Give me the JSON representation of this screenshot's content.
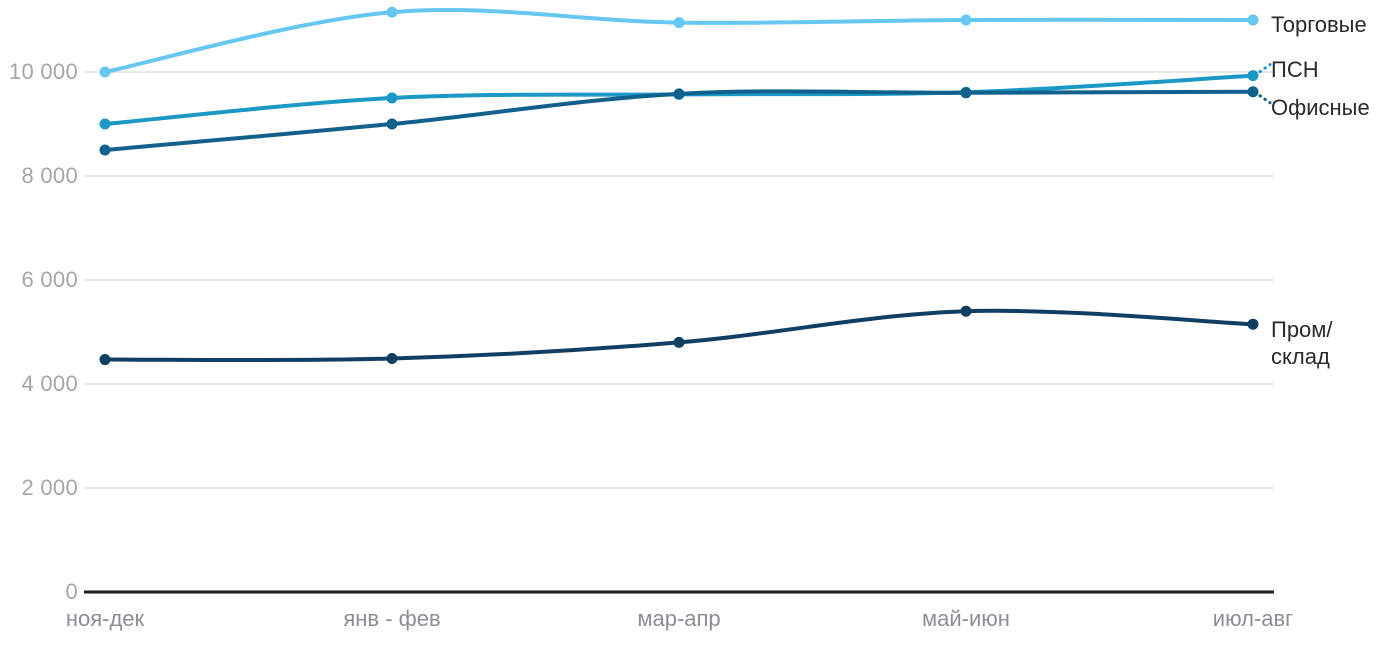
{
  "chart_data": {
    "type": "line",
    "title": "",
    "xlabel": "",
    "ylabel": "",
    "grid": true,
    "legend_position": "right-of-line-endpoints",
    "categories": [
      "ноя-дек",
      "янв - фев",
      "мар-апр",
      "май-июн",
      "июл-авг"
    ],
    "series": [
      {
        "name": "Торговые",
        "label": "Торговые",
        "color": "#66c8f0",
        "values": [
          10000,
          11150,
          10950,
          11000,
          11000
        ]
      },
      {
        "name": "ПСН",
        "label": "ПСН",
        "color": "#1b98c6",
        "values": [
          9000,
          9500,
          9570,
          9610,
          9930
        ]
      },
      {
        "name": "Офисные",
        "label": "Офисные",
        "color": "#11618c",
        "values": [
          8500,
          9000,
          9580,
          9600,
          9620
        ]
      },
      {
        "name": "Пром/склад",
        "label": "Пром/\nсклад",
        "color": "#113f63",
        "values": [
          4470,
          4490,
          4800,
          5400,
          5150
        ]
      }
    ],
    "y_axis": {
      "min": 0,
      "max": 11700,
      "tick_step": 2000,
      "ticks": [
        {
          "value": 0,
          "label": "0"
        },
        {
          "value": 2000,
          "label": "2 000"
        },
        {
          "value": 4000,
          "label": "4 000"
        },
        {
          "value": 6000,
          "label": "6 000"
        },
        {
          "value": 8000,
          "label": "8 000"
        },
        {
          "value": 10000,
          "label": "10 000"
        }
      ]
    },
    "colors": {
      "gridline": "#e9e9e9",
      "axis_line": "#1d1d1d",
      "y_tick_text": "#a6a6a6",
      "x_tick_text": "#8b8f93",
      "legend_text": "#2a2a2a"
    }
  }
}
